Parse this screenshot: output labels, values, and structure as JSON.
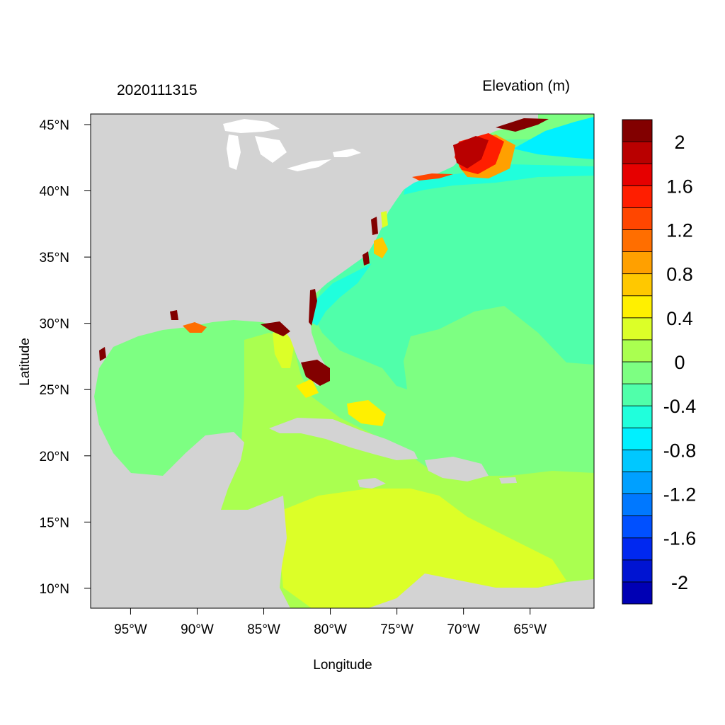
{
  "figure": {
    "left_title": "2020111315",
    "right_title": "Elevation (m)",
    "xlabel": "Longitude",
    "ylabel": "Latitude"
  },
  "axes": {
    "lon_range": [
      -98,
      -60.2
    ],
    "lat_range": [
      8.5,
      45.8
    ],
    "x_ticks": [
      {
        "value": -95,
        "label": "95°W"
      },
      {
        "value": -90,
        "label": "90°W"
      },
      {
        "value": -85,
        "label": "85°W"
      },
      {
        "value": -80,
        "label": "80°W"
      },
      {
        "value": -75,
        "label": "75°W"
      },
      {
        "value": -70,
        "label": "70°W"
      },
      {
        "value": -65,
        "label": "65°W"
      }
    ],
    "y_ticks": [
      {
        "value": 10,
        "label": "10°N"
      },
      {
        "value": 15,
        "label": "15°N"
      },
      {
        "value": 20,
        "label": "20°N"
      },
      {
        "value": 25,
        "label": "25°N"
      },
      {
        "value": 30,
        "label": "30°N"
      },
      {
        "value": 35,
        "label": "35°N"
      },
      {
        "value": 40,
        "label": "40°N"
      },
      {
        "value": 45,
        "label": "45°N"
      }
    ]
  },
  "colors": {
    "land": "#d3d3d3",
    "frame": "#000000"
  },
  "colorbar": {
    "colors": [
      "#0000b4",
      "#0014d2",
      "#0028f0",
      "#0050ff",
      "#0078ff",
      "#00a0ff",
      "#00c8ff",
      "#00f0ff",
      "#20ffdc",
      "#50ffaa",
      "#7dff82",
      "#aaff50",
      "#dcff28",
      "#fff000",
      "#ffc800",
      "#ffa000",
      "#ff6e00",
      "#ff4600",
      "#ff1e00",
      "#e60000",
      "#b90000",
      "#820000"
    ],
    "labels": [
      {
        "boundary": 21,
        "text": "2"
      },
      {
        "boundary": 19,
        "text": "1.6"
      },
      {
        "boundary": 17,
        "text": "1.2"
      },
      {
        "boundary": 15,
        "text": "0.8"
      },
      {
        "boundary": 13,
        "text": "0.4"
      },
      {
        "boundary": 11,
        "text": "0"
      },
      {
        "boundary": 9,
        "text": "-0.4"
      },
      {
        "boundary": 7,
        "text": "-0.8"
      },
      {
        "boundary": 5,
        "text": "-1.2"
      },
      {
        "boundary": 3,
        "text": "-1.6"
      },
      {
        "boundary": 1,
        "text": "-2"
      }
    ]
  }
}
